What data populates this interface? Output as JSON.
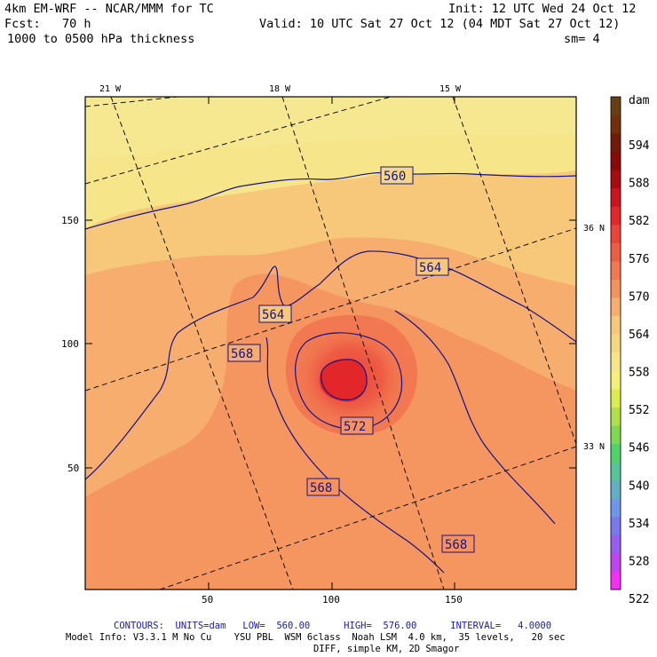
{
  "header": {
    "model": "4km EM-WRF -- NCAR/MMM for TC",
    "init": "Init: 12 UTC Wed 24 Oct 12",
    "fcst": "Fcst:   70 h",
    "valid": "Valid: 10 UTC Sat 27 Oct 12 (04 MDT Sat 27 Oct 12)",
    "field": "1000 to 0500 hPa thickness",
    "smooth": "sm= 4"
  },
  "map": {
    "lon_labels": [
      "21 W",
      "18 W",
      "15 W"
    ],
    "lat_labels": [
      "36 N",
      "33 N"
    ],
    "x_ticks": [
      "50",
      "100",
      "150"
    ],
    "y_ticks": [
      "150",
      "100",
      "50"
    ]
  },
  "contour_labels": [
    "560",
    "564",
    "564",
    "568",
    "572",
    "568",
    "568"
  ],
  "colorbar": {
    "unit": "dam",
    "levels": [
      "594",
      "588",
      "582",
      "576",
      "570",
      "564",
      "558",
      "552",
      "546",
      "540",
      "534",
      "528",
      "522"
    ],
    "colors": [
      "#f32ff3",
      "#c044f0",
      "#9a5cf0",
      "#7a78ee",
      "#6f96e8",
      "#64aec4",
      "#58c49a",
      "#52d26a",
      "#7ed850",
      "#b2e04a",
      "#dcec4e",
      "#f5f07a",
      "#f7e58a",
      "#f7d882",
      "#f7c77a",
      "#f6ad6e",
      "#f5925e",
      "#f17850",
      "#ee5c44",
      "#ea4438",
      "#e2262a",
      "#cc141c",
      "#a80c12",
      "#8a0a0a",
      "#741a08",
      "#70300e",
      "#6a3e14"
    ]
  },
  "footer": {
    "contours": "CONTOURS:  UNITS=dam   LOW=  560.00      HIGH=  576.00      INTERVAL=   4.0000",
    "model_info": "Model Info: V3.3.1 M No Cu    YSU PBL  WSM 6class  Noah LSM  4.0 km,  35 levels,   20 sec",
    "model_info2": "DIFF, simple KM, 2D Smagor"
  }
}
